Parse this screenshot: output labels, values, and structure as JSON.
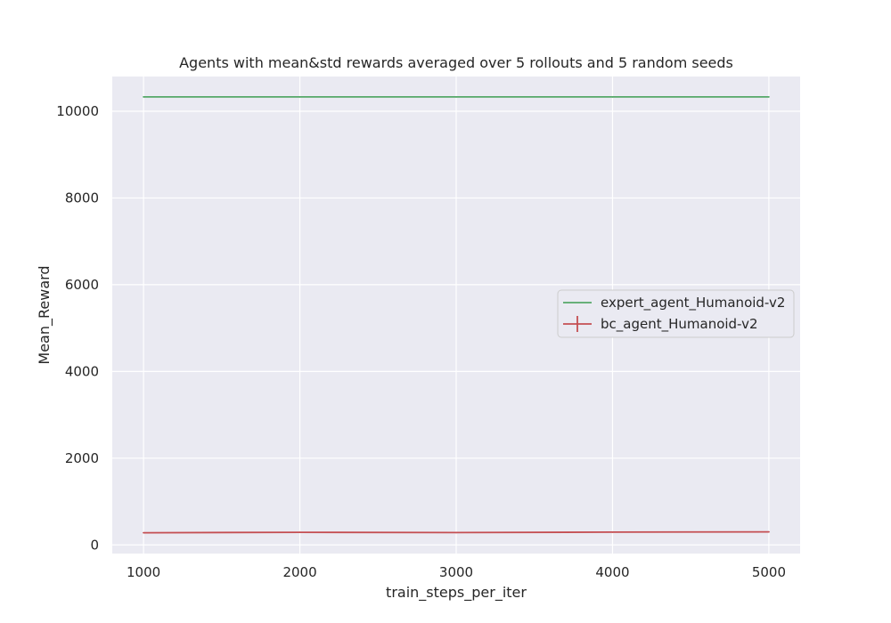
{
  "chart_data": {
    "type": "line",
    "title": "Agents with mean&std rewards averaged over 5 rollouts and 5 random seeds",
    "xlabel": "train_steps_per_iter",
    "ylabel": "Mean_Reward",
    "xlim": [
      800,
      5200
    ],
    "ylim": [
      -200,
      10800
    ],
    "xticks": [
      1000,
      2000,
      3000,
      4000,
      5000
    ],
    "yticks": [
      0,
      2000,
      4000,
      6000,
      8000,
      10000
    ],
    "grid": true,
    "legend_position": "center-right",
    "x": [
      1000,
      2000,
      3000,
      4000,
      5000
    ],
    "series": [
      {
        "name": "expert_agent_Humanoid-v2",
        "color": "#55a868",
        "values": [
          10330,
          10330,
          10330,
          10330,
          10330
        ],
        "errorbars": false
      },
      {
        "name": "bc_agent_Humanoid-v2",
        "color": "#c44e52",
        "values": [
          280,
          290,
          285,
          295,
          300
        ],
        "std": [
          8,
          8,
          8,
          8,
          8
        ],
        "errorbars": true
      }
    ],
    "colors": {
      "background": "#eaeaf2",
      "grid": "#ffffff",
      "text": "#262626"
    }
  }
}
